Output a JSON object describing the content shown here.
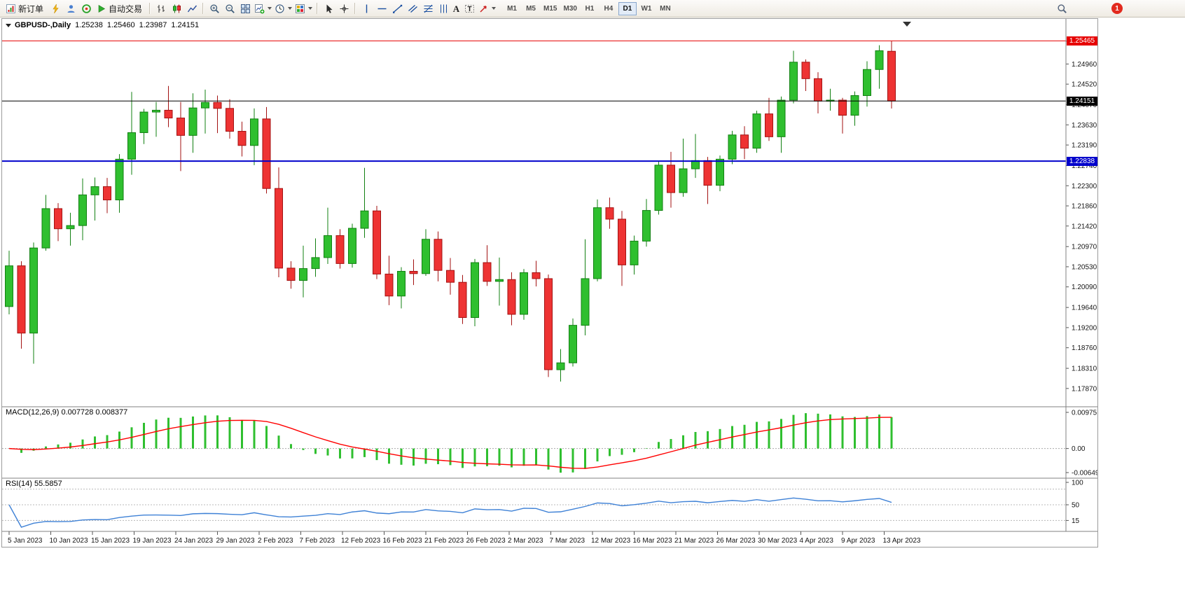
{
  "toolbar": {
    "new_order": "新订单",
    "autotrading": "自动交易",
    "timeframes": [
      "M1",
      "M5",
      "M15",
      "M30",
      "H1",
      "H4",
      "D1",
      "W1",
      "MN"
    ],
    "active_timeframe": "D1",
    "notification_count": "1"
  },
  "chart_header": {
    "symbol_period": "GBPUSD-,Daily",
    "open": "1.25238",
    "high": "1.25460",
    "low": "1.23987",
    "close": "1.24151"
  },
  "panels": {
    "macd_label": "MACD(12,26,9) 0.007728 0.008377",
    "rsi_label": "RSI(14) 55.5857"
  },
  "chart_data": {
    "type": "candlestick",
    "symbol": "GBPUSD-",
    "period": "Daily",
    "y_range": [
      1.1747,
      1.2567
    ],
    "y_ticks": [
      "1.25460",
      "1.24960",
      "1.24520",
      "1.24070",
      "1.23630",
      "1.23190",
      "1.22740",
      "1.22300",
      "1.21860",
      "1.21420",
      "1.20970",
      "1.20530",
      "1.20090",
      "1.19640",
      "1.19200",
      "1.18760",
      "1.18310",
      "1.17870"
    ],
    "x_ticks": [
      "5 Jan 2023",
      "10 Jan 2023",
      "15 Jan 2023",
      "19 Jan 2023",
      "24 Jan 2023",
      "29 Jan 2023",
      "2 Feb 2023",
      "7 Feb 2023",
      "12 Feb 2023",
      "16 Feb 2023",
      "21 Feb 2023",
      "26 Feb 2023",
      "2 Mar 2023",
      "7 Mar 2023",
      "12 Mar 2023",
      "16 Mar 2023",
      "21 Mar 2023",
      "26 Mar 2023",
      "30 Mar 2023",
      "4 Apr 2023",
      "9 Apr 2023",
      "13 Apr 2023"
    ],
    "hlines": [
      {
        "price": 1.25465,
        "label": "1.25465",
        "color": "#e60000",
        "width": 1
      },
      {
        "price": 1.24151,
        "label": "1.24151",
        "color": "#000000",
        "width": 1
      },
      {
        "price": 1.22838,
        "label": "1.22838",
        "color": "#0000cc",
        "width": 2
      }
    ],
    "colors": {
      "up": "#2fbf2f",
      "up_border": "#128012",
      "down": "#ee3333",
      "down_border": "#a31212",
      "macd_hist": "#2fbf2f",
      "macd_signal": "#ff0000",
      "rsi_line": "#3e81d6"
    },
    "candles": [
      [
        1.1966,
        1.2088,
        1.1949,
        1.2055
      ],
      [
        1.2055,
        1.2065,
        1.1874,
        1.1908
      ],
      [
        1.1908,
        1.2106,
        1.1841,
        1.2094
      ],
      [
        1.2094,
        1.221,
        1.2088,
        1.218
      ],
      [
        1.218,
        1.2192,
        1.2109,
        1.2136
      ],
      [
        1.2136,
        1.2171,
        1.2099,
        1.2143
      ],
      [
        1.2143,
        1.2246,
        1.2111,
        1.221
      ],
      [
        1.221,
        1.2248,
        1.2154,
        1.2228
      ],
      [
        1.2228,
        1.2247,
        1.217,
        1.2199
      ],
      [
        1.2199,
        1.2299,
        1.2171,
        1.2288
      ],
      [
        1.2288,
        1.2435,
        1.2254,
        1.2346
      ],
      [
        1.2346,
        1.2398,
        1.2321,
        1.2391
      ],
      [
        1.2391,
        1.2413,
        1.2337,
        1.2395
      ],
      [
        1.2395,
        1.2448,
        1.2358,
        1.2378
      ],
      [
        1.2378,
        1.2413,
        1.2262,
        1.234
      ],
      [
        1.234,
        1.2432,
        1.2302,
        1.24
      ],
      [
        1.24,
        1.244,
        1.2344,
        1.2412
      ],
      [
        1.2412,
        1.2427,
        1.2345,
        1.2399
      ],
      [
        1.2399,
        1.2419,
        1.2333,
        1.2349
      ],
      [
        1.2349,
        1.237,
        1.2294,
        1.2318
      ],
      [
        1.2318,
        1.2399,
        1.2275,
        1.2376
      ],
      [
        1.2376,
        1.2402,
        1.2213,
        1.2224
      ],
      [
        1.2224,
        1.227,
        1.203,
        1.205
      ],
      [
        1.205,
        1.2065,
        1.2005,
        1.2023
      ],
      [
        1.2023,
        1.2099,
        1.1986,
        1.2049
      ],
      [
        1.2049,
        1.2115,
        1.2031,
        1.2073
      ],
      [
        1.2073,
        1.2182,
        1.2059,
        1.2121
      ],
      [
        1.2121,
        1.2135,
        1.2049,
        1.206
      ],
      [
        1.206,
        1.2147,
        1.2051,
        1.2137
      ],
      [
        1.2137,
        1.2269,
        1.2116,
        1.2175
      ],
      [
        1.2175,
        1.2186,
        1.2026,
        1.2037
      ],
      [
        1.2037,
        1.2077,
        1.1969,
        1.1989
      ],
      [
        1.1989,
        1.2052,
        1.1962,
        1.2043
      ],
      [
        1.2043,
        1.2069,
        1.2013,
        1.2038
      ],
      [
        1.2038,
        1.2135,
        1.2033,
        1.2113
      ],
      [
        1.2113,
        1.213,
        1.2021,
        1.2045
      ],
      [
        1.2045,
        1.2072,
        1.1992,
        1.2019
      ],
      [
        1.2019,
        1.2035,
        1.1928,
        1.1942
      ],
      [
        1.1942,
        1.207,
        1.1923,
        1.2062
      ],
      [
        1.2062,
        1.21,
        1.2011,
        1.2021
      ],
      [
        1.2021,
        1.2073,
        1.1968,
        1.2025
      ],
      [
        1.2025,
        1.2041,
        1.1925,
        1.1949
      ],
      [
        1.1949,
        1.2048,
        1.1937,
        1.204
      ],
      [
        1.204,
        1.2066,
        1.201,
        1.2027
      ],
      [
        1.2027,
        1.2036,
        1.1812,
        1.1828
      ],
      [
        1.1828,
        1.1873,
        1.1802,
        1.1843
      ],
      [
        1.1843,
        1.194,
        1.1835,
        1.1925
      ],
      [
        1.1925,
        1.2113,
        1.1903,
        1.2027
      ],
      [
        1.2027,
        1.22,
        1.2021,
        1.2182
      ],
      [
        1.2182,
        1.2204,
        1.2136,
        1.2157
      ],
      [
        1.2157,
        1.2175,
        1.2011,
        1.2057
      ],
      [
        1.2057,
        1.2121,
        1.2036,
        1.2109
      ],
      [
        1.2109,
        1.2201,
        1.2097,
        1.2176
      ],
      [
        1.2176,
        1.2284,
        1.2167,
        1.2275
      ],
      [
        1.2275,
        1.2304,
        1.2182,
        1.2215
      ],
      [
        1.2215,
        1.2333,
        1.2206,
        1.2267
      ],
      [
        1.2267,
        1.2343,
        1.2247,
        1.2285
      ],
      [
        1.2285,
        1.2293,
        1.219,
        1.2231
      ],
      [
        1.2231,
        1.2296,
        1.2218,
        1.2288
      ],
      [
        1.2288,
        1.235,
        1.2277,
        1.2341
      ],
      [
        1.2341,
        1.236,
        1.2288,
        1.2312
      ],
      [
        1.2312,
        1.2394,
        1.2302,
        1.2387
      ],
      [
        1.2387,
        1.2422,
        1.2328,
        1.2337
      ],
      [
        1.2337,
        1.2425,
        1.2302,
        1.2417
      ],
      [
        1.2417,
        1.2525,
        1.241,
        1.25
      ],
      [
        1.25,
        1.2506,
        1.2437,
        1.2464
      ],
      [
        1.2464,
        1.2478,
        1.2388,
        1.2415
      ],
      [
        1.2415,
        1.2442,
        1.2394,
        1.2417
      ],
      [
        1.2417,
        1.2422,
        1.2344,
        1.2384
      ],
      [
        1.2384,
        1.2436,
        1.2361,
        1.2427
      ],
      [
        1.2427,
        1.2502,
        1.2403,
        1.2484
      ],
      [
        1.2484,
        1.2537,
        1.2442,
        1.2525
      ],
      [
        1.25238,
        1.2546,
        1.23987,
        1.24151
      ]
    ],
    "macd": {
      "name": "MACD",
      "params": [
        12,
        26,
        9
      ],
      "main_value": 0.007728,
      "signal_value": 0.008377,
      "scale_ticks": [
        "0.00975",
        "0.00",
        "-0.006494"
      ],
      "y_range": [
        -0.006494,
        0.00975
      ]
    },
    "rsi": {
      "name": "RSI",
      "params": [
        14
      ],
      "value": 55.5857,
      "scale_ticks": [
        "100",
        "50",
        "15"
      ],
      "levels": [
        85,
        50,
        15
      ],
      "y_range": [
        0,
        100
      ]
    }
  }
}
